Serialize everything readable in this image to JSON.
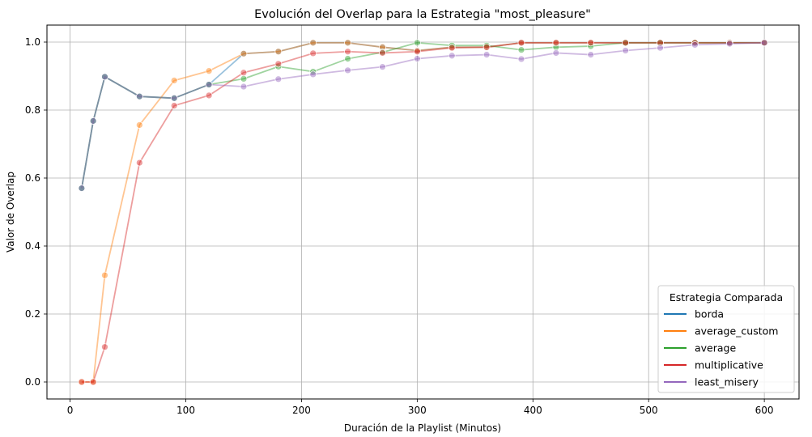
{
  "chart_data": {
    "type": "line",
    "title": "Evolución del Overlap para la Estrategia \"most_pleasure\"",
    "xlabel": "Duración de la Playlist (Minutos)",
    "ylabel": "Valor de Overlap",
    "xlim": [
      -20,
      630
    ],
    "ylim": [
      -0.05,
      1.05
    ],
    "xticks": [
      0,
      100,
      200,
      300,
      400,
      500,
      600
    ],
    "xtick_labels": [
      "0",
      "100",
      "200",
      "300",
      "400",
      "500",
      "600"
    ],
    "yticks": [
      0.0,
      0.2,
      0.4,
      0.6,
      0.8,
      1.0
    ],
    "ytick_labels": [
      "0.0",
      "0.2",
      "0.4",
      "0.6",
      "0.8",
      "1.0"
    ],
    "grid": true,
    "legend": {
      "title": "Estrategia Comparada",
      "position": "bottom-right"
    },
    "x": [
      10,
      20,
      30,
      60,
      90,
      120,
      150,
      180,
      210,
      240,
      270,
      300,
      330,
      360,
      390,
      420,
      450,
      480,
      510,
      540,
      570,
      600
    ],
    "series": [
      {
        "name": "borda",
        "color": "#1f77b4",
        "values": [
          0.57,
          0.768,
          0.898,
          0.84,
          0.835,
          0.875,
          0.966,
          0.972,
          0.998,
          0.998,
          0.985,
          0.975,
          0.985,
          0.985,
          0.998,
          0.998,
          0.998,
          0.998,
          0.998,
          0.998,
          0.998,
          0.998
        ]
      },
      {
        "name": "average_custom",
        "color": "#ff7f0e",
        "values": [
          0.0,
          0.0,
          0.314,
          0.756,
          0.887,
          0.915,
          0.966,
          0.972,
          0.998,
          0.998,
          0.985,
          0.975,
          0.985,
          0.985,
          0.998,
          0.998,
          0.998,
          0.998,
          0.998,
          0.998,
          0.998,
          0.998
        ]
      },
      {
        "name": "average",
        "color": "#2ca02c",
        "values": [
          0.57,
          0.768,
          0.898,
          0.84,
          0.835,
          0.875,
          0.892,
          0.928,
          0.913,
          0.951,
          0.97,
          0.998,
          0.99,
          0.99,
          0.977,
          0.985,
          0.988,
          0.998,
          0.998,
          0.998,
          0.998,
          0.998
        ]
      },
      {
        "name": "multiplicative",
        "color": "#d62728",
        "values": [
          0.0,
          0.0,
          0.103,
          0.645,
          0.813,
          0.843,
          0.91,
          0.936,
          0.967,
          0.972,
          0.968,
          0.972,
          0.983,
          0.985,
          0.998,
          0.998,
          0.998,
          0.998,
          0.998,
          0.998,
          0.998,
          0.998
        ]
      },
      {
        "name": "least_misery",
        "color": "#9467bd",
        "values": [
          0.57,
          0.768,
          0.898,
          0.84,
          0.835,
          0.875,
          0.869,
          0.891,
          0.905,
          0.917,
          0.927,
          0.951,
          0.96,
          0.963,
          0.95,
          0.968,
          0.963,
          0.975,
          0.983,
          0.992,
          0.995,
          0.998
        ]
      }
    ]
  }
}
